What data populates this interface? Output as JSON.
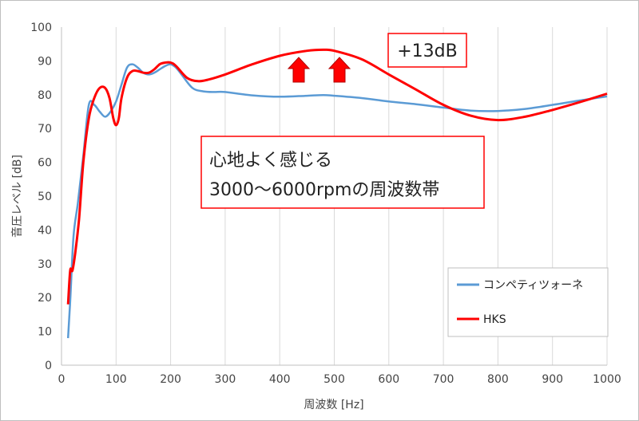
{
  "chart_data": {
    "type": "line",
    "xlabel": "周波数 [Hz]",
    "ylabel": "音圧レベル [dB]",
    "xlim": [
      0,
      1000
    ],
    "ylim": [
      0,
      100
    ],
    "x_ticks": [
      "0",
      "100",
      "200",
      "300",
      "400",
      "500",
      "600",
      "700",
      "800",
      "900",
      "1000"
    ],
    "y_ticks": [
      "0",
      "10",
      "20",
      "30",
      "40",
      "50",
      "60",
      "70",
      "80",
      "90",
      "100"
    ],
    "grid": "vertical",
    "legend_position": "right",
    "series": [
      {
        "name": "コンペティツォーネ",
        "color": "#5b9bd5",
        "points": [
          [
            12,
            8
          ],
          [
            16,
            19
          ],
          [
            22,
            38
          ],
          [
            30,
            48
          ],
          [
            40,
            62
          ],
          [
            50,
            77
          ],
          [
            60,
            77
          ],
          [
            70,
            75
          ],
          [
            80,
            73.5
          ],
          [
            90,
            75
          ],
          [
            100,
            78
          ],
          [
            110,
            83
          ],
          [
            120,
            88
          ],
          [
            130,
            89
          ],
          [
            140,
            88
          ],
          [
            150,
            86.5
          ],
          [
            160,
            86
          ],
          [
            170,
            86.5
          ],
          [
            180,
            87.5
          ],
          [
            190,
            88.5
          ],
          [
            200,
            89
          ],
          [
            210,
            88
          ],
          [
            220,
            86
          ],
          [
            240,
            82
          ],
          [
            260,
            81
          ],
          [
            280,
            80.8
          ],
          [
            300,
            80.8
          ],
          [
            350,
            79.8
          ],
          [
            400,
            79.4
          ],
          [
            450,
            79.7
          ],
          [
            480,
            79.9
          ],
          [
            500,
            79.7
          ],
          [
            550,
            79
          ],
          [
            600,
            78
          ],
          [
            650,
            77.2
          ],
          [
            700,
            76.2
          ],
          [
            750,
            75.3
          ],
          [
            800,
            75.2
          ],
          [
            850,
            75.8
          ],
          [
            900,
            77
          ],
          [
            950,
            78.3
          ],
          [
            1000,
            79.5
          ]
        ]
      },
      {
        "name": "HKS",
        "color": "#ff0000",
        "points": [
          [
            12,
            18
          ],
          [
            16,
            28
          ],
          [
            20,
            28
          ],
          [
            25,
            33
          ],
          [
            32,
            43
          ],
          [
            40,
            60
          ],
          [
            50,
            73
          ],
          [
            60,
            79
          ],
          [
            70,
            82
          ],
          [
            80,
            82
          ],
          [
            88,
            79
          ],
          [
            95,
            73
          ],
          [
            100,
            71
          ],
          [
            105,
            73
          ],
          [
            110,
            79
          ],
          [
            120,
            85
          ],
          [
            130,
            87
          ],
          [
            140,
            87
          ],
          [
            150,
            86.5
          ],
          [
            160,
            86.5
          ],
          [
            170,
            87.5
          ],
          [
            180,
            89
          ],
          [
            190,
            89.5
          ],
          [
            200,
            89.5
          ],
          [
            210,
            88.5
          ],
          [
            230,
            85
          ],
          [
            250,
            84
          ],
          [
            270,
            84.5
          ],
          [
            300,
            86
          ],
          [
            350,
            89
          ],
          [
            400,
            91.5
          ],
          [
            450,
            93
          ],
          [
            480,
            93.3
          ],
          [
            500,
            93
          ],
          [
            550,
            90.5
          ],
          [
            600,
            86
          ],
          [
            650,
            81.5
          ],
          [
            700,
            77
          ],
          [
            750,
            73.8
          ],
          [
            800,
            72.5
          ],
          [
            850,
            73.5
          ],
          [
            900,
            75.5
          ],
          [
            950,
            77.8
          ],
          [
            1000,
            80.3
          ]
        ]
      }
    ],
    "annotations": {
      "gain": "+13dB",
      "note_line1": "心地よく感じる",
      "note_line2": "3000～6000rpmの周波数帯"
    },
    "arrow_color": "#ff0000"
  }
}
